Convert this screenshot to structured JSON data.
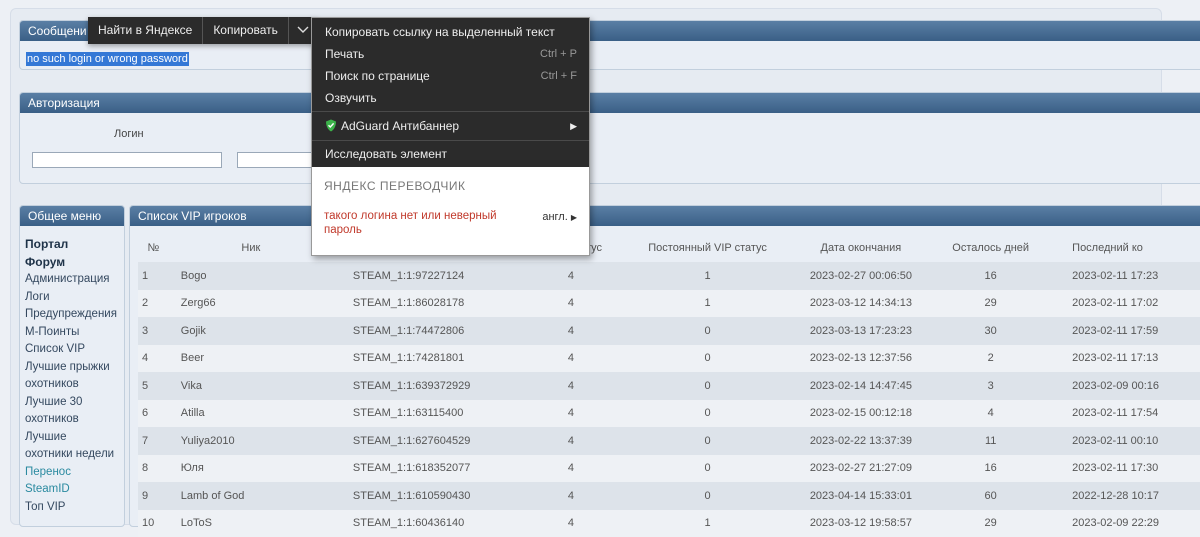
{
  "messages": {
    "header": "Сообщени",
    "selected_text": "no such login or wrong password"
  },
  "auth": {
    "header": "Авторизация",
    "login_label": "Логин"
  },
  "menu": {
    "header": "Общее меню",
    "items": [
      "Портал",
      "Форум",
      "Администрация",
      "Логи",
      "Предупреждения",
      "М-Поинты",
      "Список VIP",
      "Лучшие прыжки",
      "охотников",
      "Лучшие 30",
      "охотников",
      "Лучшие",
      "охотники недели",
      "Перенос",
      "SteamID",
      "Топ VIP"
    ]
  },
  "vip": {
    "header": "Список VIP игроков",
    "columns": [
      "№",
      "Ник",
      "",
      "й VIP статус",
      "Постоянный VIP статус",
      "Дата окончания",
      "Осталось дней",
      "Последний ко"
    ],
    "rows": [
      [
        "1",
        "Bogo",
        "STEAM_1:1:97227124",
        "4",
        "1",
        "2023-02-27 00:06:50",
        "16",
        "2023-02-11 17:23"
      ],
      [
        "2",
        "Zerg66",
        "STEAM_1:1:86028178",
        "4",
        "1",
        "2023-03-12 14:34:13",
        "29",
        "2023-02-11 17:02"
      ],
      [
        "3",
        "Gojik",
        "STEAM_1:1:74472806",
        "4",
        "0",
        "2023-03-13 17:23:23",
        "30",
        "2023-02-11 17:59"
      ],
      [
        "4",
        "Beer",
        "STEAM_1:1:74281801",
        "4",
        "0",
        "2023-02-13 12:37:56",
        "2",
        "2023-02-11 17:13"
      ],
      [
        "5",
        "Vika",
        "STEAM_1:1:639372929",
        "4",
        "0",
        "2023-02-14 14:47:45",
        "3",
        "2023-02-09 00:16"
      ],
      [
        "6",
        "Atilla",
        "STEAM_1:1:63115400",
        "4",
        "0",
        "2023-02-15 00:12:18",
        "4",
        "2023-02-11 17:54"
      ],
      [
        "7",
        "Yuliya2010",
        "STEAM_1:1:627604529",
        "4",
        "0",
        "2023-02-22 13:37:39",
        "11",
        "2023-02-11 00:10"
      ],
      [
        "8",
        "Юля",
        "STEAM_1:1:618352077",
        "4",
        "0",
        "2023-02-27 21:27:09",
        "16",
        "2023-02-11 17:30"
      ],
      [
        "9",
        "Lamb of God",
        "STEAM_1:1:610590430",
        "4",
        "0",
        "2023-04-14 15:33:01",
        "60",
        "2022-12-28 10:17"
      ],
      [
        "10",
        "LoToS",
        "STEAM_1:1:60436140",
        "4",
        "1",
        "2023-03-12 19:58:57",
        "29",
        "2023-02-09 22:29"
      ]
    ]
  },
  "context_topbar": {
    "find": "Найти в Яндексе",
    "copy": "Копировать"
  },
  "context_menu": {
    "copy_link": "Копировать ссылку на выделенный текст",
    "print": "Печать",
    "print_sc": "Ctrl + P",
    "find": "Поиск по странице",
    "find_sc": "Ctrl + F",
    "speak": "Озвучить",
    "adguard": "AdGuard Антибаннер",
    "inspect": "Исследовать элемент",
    "translator_title": "ЯНДЕКС ПЕРЕВОДЧИК",
    "translation": "такого логина нет или неверный пароль",
    "lang": "англ."
  },
  "colors": {
    "adguard": "#3cb34a",
    "translation": "#c0392b"
  }
}
